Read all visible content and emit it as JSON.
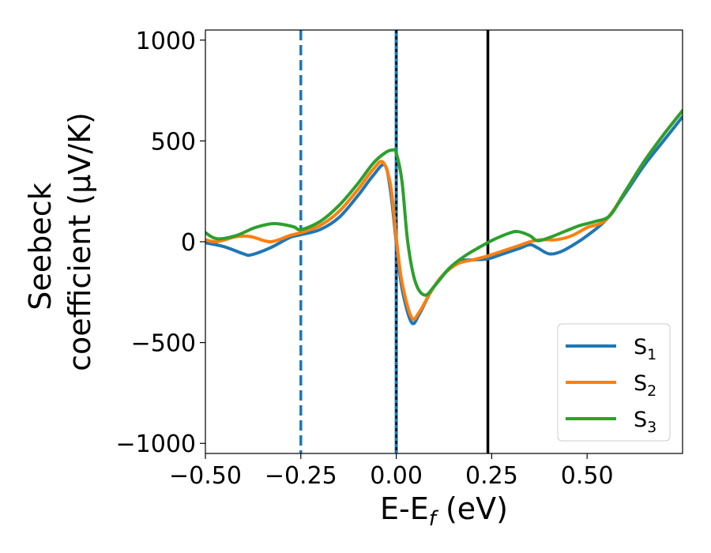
{
  "chart_data": {
    "type": "line",
    "title": "",
    "xlabel": "E-E",
    "xlabel_sub": "f",
    "xlabel_unit": " (eV)",
    "ylabel_line1": "Seebeck",
    "ylabel_line2": "coefficient  (μV/K)",
    "xlim": [
      -0.5,
      0.75
    ],
    "ylim": [
      -1050,
      1050
    ],
    "x_ticks": [
      -0.5,
      -0.25,
      0.0,
      0.25,
      0.5
    ],
    "x_tick_labels": [
      "−0.50",
      "−0.25",
      "0.00",
      "0.25",
      "0.50"
    ],
    "y_ticks": [
      -1000,
      -500,
      0,
      500,
      1000
    ],
    "y_tick_labels": [
      "−1000",
      "−500",
      "0",
      "500",
      "1000"
    ],
    "grid": false,
    "legend_position": "bottom-right",
    "series": [
      {
        "name": "S",
        "name_sub": "1",
        "color": "#1f77b4",
        "x": [
          -0.5,
          -0.45,
          -0.4,
          -0.38,
          -0.33,
          -0.28,
          -0.25,
          -0.2,
          -0.15,
          -0.1,
          -0.06,
          -0.03,
          -0.015,
          0.0,
          0.015,
          0.04,
          0.06,
          0.09,
          0.12,
          0.16,
          0.2,
          0.24,
          0.28,
          0.32,
          0.35,
          0.37,
          0.4,
          0.43,
          0.46,
          0.5,
          0.55,
          0.6,
          0.65,
          0.7,
          0.75
        ],
        "y": [
          -5,
          -25,
          -60,
          -65,
          -30,
          20,
          35,
          60,
          120,
          230,
          330,
          380,
          250,
          0,
          -230,
          -400,
          -360,
          -250,
          -170,
          -100,
          -90,
          -85,
          -60,
          -35,
          -15,
          -30,
          -60,
          -50,
          -20,
          30,
          110,
          240,
          380,
          500,
          620
        ]
      },
      {
        "name": "S",
        "name_sub": "2",
        "color": "#ff7f0e",
        "x": [
          -0.5,
          -0.47,
          -0.42,
          -0.38,
          -0.33,
          -0.28,
          -0.25,
          -0.2,
          -0.15,
          -0.1,
          -0.06,
          -0.035,
          -0.015,
          0.0,
          0.015,
          0.04,
          0.06,
          0.09,
          0.12,
          0.16,
          0.2,
          0.24,
          0.28,
          0.32,
          0.35,
          0.38,
          0.42,
          0.46,
          0.5,
          0.55,
          0.6,
          0.65,
          0.7,
          0.75
        ],
        "y": [
          10,
          0,
          25,
          25,
          0,
          30,
          45,
          80,
          150,
          260,
          360,
          395,
          280,
          20,
          -200,
          -375,
          -350,
          -250,
          -170,
          -110,
          -90,
          -70,
          -45,
          -20,
          0,
          10,
          10,
          30,
          70,
          110,
          250,
          400,
          530,
          650
        ]
      },
      {
        "name": "S",
        "name_sub": "3",
        "color": "#2ca02c",
        "x": [
          -0.5,
          -0.47,
          -0.42,
          -0.37,
          -0.32,
          -0.27,
          -0.25,
          -0.2,
          -0.15,
          -0.1,
          -0.06,
          -0.03,
          -0.01,
          0.0,
          0.015,
          0.03,
          0.05,
          0.075,
          0.1,
          0.14,
          0.18,
          0.22,
          0.26,
          0.3,
          0.32,
          0.35,
          0.37,
          0.4,
          0.44,
          0.48,
          0.52,
          0.56,
          0.6,
          0.65,
          0.7,
          0.75
        ],
        "y": [
          45,
          15,
          30,
          70,
          90,
          75,
          60,
          100,
          180,
          290,
          390,
          440,
          455,
          440,
          300,
          0,
          -200,
          -265,
          -220,
          -130,
          -70,
          -25,
          15,
          45,
          50,
          30,
          5,
          20,
          50,
          80,
          100,
          130,
          250,
          400,
          530,
          650
        ]
      }
    ],
    "vertical_lines": [
      {
        "x": -0.25,
        "color": "#1f77b4",
        "style": "dashed"
      },
      {
        "x": 0.0,
        "color": "#1f77b4",
        "style": "solid"
      },
      {
        "x": 0.0,
        "color": "#000000",
        "style": "dotted"
      },
      {
        "x": 0.24,
        "color": "#000000",
        "style": "solid"
      }
    ]
  }
}
